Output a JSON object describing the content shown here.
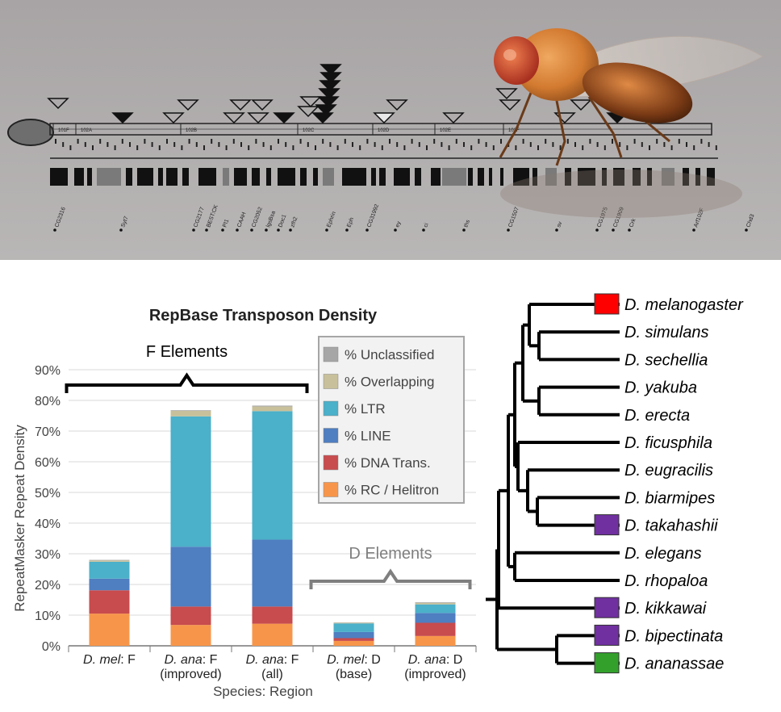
{
  "banner": {
    "map_labels": [
      "101F",
      "102A",
      "102B",
      "102C",
      "102D",
      "102E",
      "102F"
    ],
    "gene_labels": [
      "CG2316",
      "Syt7",
      "CG2177",
      "BEST:CK",
      "Pl1",
      "CAAH",
      "CG2052",
      "lgsBsa",
      "Doc1",
      "zfh2",
      "Ephrin",
      "Eph",
      "CG31992",
      "ey",
      "ci",
      "ths",
      "CG1507",
      "sv",
      "CG1975",
      "CG1909",
      "Crk",
      "Arf102F",
      "Chd3"
    ]
  },
  "chart_data": {
    "type": "bar",
    "stacked": true,
    "title": "RepBase Transposon Density",
    "xlabel": "Species: Region",
    "ylabel": "RepeatMasker Repeat Density",
    "ylim": [
      0,
      90
    ],
    "yticks": [
      "0%",
      "10%",
      "20%",
      "30%",
      "40%",
      "50%",
      "60%",
      "70%",
      "80%",
      "90%"
    ],
    "categories": [
      {
        "prefix": "D. mel",
        "suffix": ": F",
        "line2": ""
      },
      {
        "prefix": "D. ana",
        "suffix": ": F",
        "line2": "(improved)"
      },
      {
        "prefix": "D. ana",
        "suffix": ": F",
        "line2": "(all)"
      },
      {
        "prefix": "D. mel",
        "suffix": ": D",
        "line2": "(base)"
      },
      {
        "prefix": "D. ana",
        "suffix": ": D",
        "line2": "(improved)"
      }
    ],
    "series": [
      {
        "name": "% RC / Helitron",
        "color": "#f7964a",
        "values": [
          10.5,
          6.8,
          7.2,
          1.6,
          3.2
        ]
      },
      {
        "name": "% DNA Trans.",
        "color": "#c84b4d",
        "values": [
          7.6,
          6.0,
          5.6,
          0.9,
          4.3
        ]
      },
      {
        "name": "% LINE",
        "color": "#4f7ec1",
        "values": [
          3.8,
          19.5,
          21.8,
          2.0,
          3.2
        ]
      },
      {
        "name": "% LTR",
        "color": "#4bb0c9",
        "values": [
          5.5,
          42.5,
          41.9,
          2.8,
          2.8
        ]
      },
      {
        "name": "% Overlapping",
        "color": "#c8c09a",
        "values": [
          0.4,
          1.8,
          1.5,
          0.2,
          0.5
        ]
      },
      {
        "name": "% Unclassified",
        "color": "#a6a6a6",
        "values": [
          0.2,
          0.2,
          0.3,
          0.1,
          0.2
        ]
      }
    ],
    "legend_position": "top-right",
    "annotations": [
      {
        "label": "F Elements",
        "color": "#000000",
        "spans": [
          0,
          2
        ]
      },
      {
        "label": "D Elements",
        "color": "#7f7f7f",
        "spans": [
          3,
          4
        ]
      }
    ]
  },
  "tree": {
    "species": [
      {
        "name": "D. melanogaster",
        "marker": "#ff0000"
      },
      {
        "name": "D. simulans",
        "marker": ""
      },
      {
        "name": "D. sechellia",
        "marker": ""
      },
      {
        "name": "D. yakuba",
        "marker": ""
      },
      {
        "name": "D. erecta",
        "marker": ""
      },
      {
        "name": "D. ficusphila",
        "marker": ""
      },
      {
        "name": "D. eugracilis",
        "marker": ""
      },
      {
        "name": "D. biarmipes",
        "marker": ""
      },
      {
        "name": "D. takahashii",
        "marker": "#7030a0"
      },
      {
        "name": "D. elegans",
        "marker": ""
      },
      {
        "name": "D. rhopaloa",
        "marker": ""
      },
      {
        "name": "D. kikkawai",
        "marker": "#7030a0"
      },
      {
        "name": "D. bipectinata",
        "marker": "#7030a0"
      },
      {
        "name": "D. ananassae",
        "marker": "#33a02c"
      }
    ]
  }
}
